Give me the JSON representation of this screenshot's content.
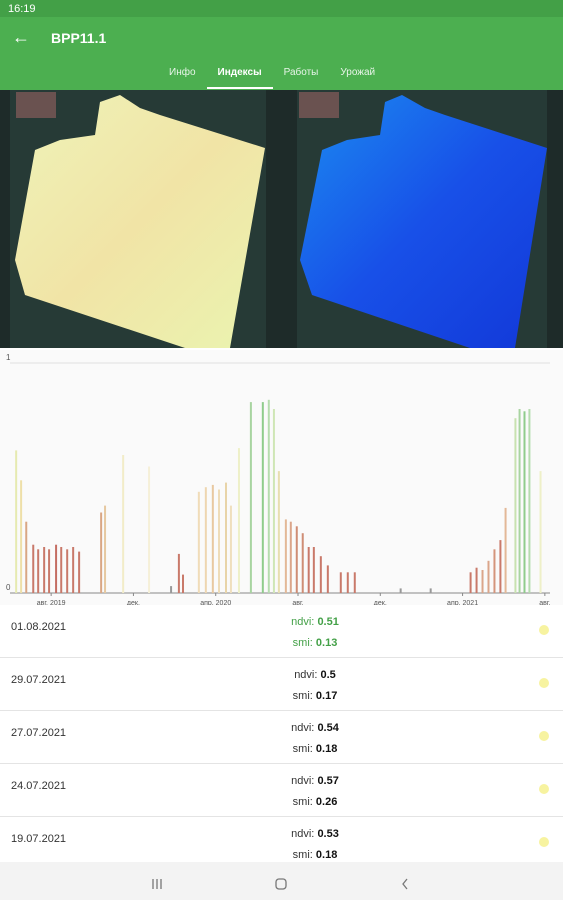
{
  "status_bar": {
    "time": "16:19"
  },
  "header": {
    "title": "ВРР11.1",
    "tabs": [
      "Инфо",
      "Индексы",
      "Работы",
      "Урожай"
    ]
  },
  "chart_data": {
    "type": "bar",
    "x": [
      -1.7,
      -1.46,
      -1.21,
      -0.87,
      -0.63,
      -0.34,
      -0.1,
      0.24,
      0.49,
      0.78,
      1.07,
      1.36,
      2.43,
      2.62,
      3.5,
      4.76,
      5.83,
      6.21,
      6.41,
      7.18,
      7.52,
      7.86,
      8.16,
      8.5,
      8.74,
      9.13,
      9.71,
      10.29,
      10.58,
      10.83,
      11.07,
      11.41,
      11.65,
      11.94,
      12.23,
      12.52,
      12.77,
      13.11,
      13.45,
      14.08,
      14.42,
      14.76,
      16.99,
      18.45,
      20.39,
      20.68,
      20.97,
      21.26,
      21.55,
      21.84,
      22.09,
      22.57,
      22.77,
      23.01,
      23.25,
      23.79
    ],
    "values": [
      0.62,
      0.49,
      0.31,
      0.21,
      0.19,
      0.2,
      0.19,
      0.21,
      0.2,
      0.19,
      0.2,
      0.18,
      0.35,
      0.38,
      0.6,
      0.55,
      0.03,
      0.17,
      0.08,
      0.44,
      0.46,
      0.47,
      0.45,
      0.48,
      0.38,
      0.63,
      0.83,
      0.83,
      0.84,
      0.8,
      0.53,
      0.32,
      0.31,
      0.29,
      0.26,
      0.2,
      0.2,
      0.16,
      0.12,
      0.09,
      0.09,
      0.09,
      0.02,
      0.02,
      0.09,
      0.11,
      0.1,
      0.14,
      0.19,
      0.23,
      0.37,
      0.76,
      0.8,
      0.79,
      0.8,
      0.53
    ],
    "colors": [
      "#e6eab0",
      "#eedfa8",
      "#d9a684",
      "#c9796a",
      "#c9796a",
      "#c9796a",
      "#c9796a",
      "#c46d62",
      "#c9796a",
      "#c9796a",
      "#c9796a",
      "#c9796a",
      "#d9a684",
      "#e6c8a0",
      "#f2ecc8",
      "#f5f0d8",
      "#999999",
      "#c9796a",
      "#c9796a",
      "#f0dcb8",
      "#eed6b0",
      "#e8c8a0",
      "#eedcb8",
      "#e8d4a8",
      "#efdfbd",
      "#eef0c8",
      "#a8d4a0",
      "#8fcc8c",
      "#b5dcae",
      "#cfe6b6",
      "#e8dfb0",
      "#e3b897",
      "#dba58a",
      "#cf8d75",
      "#cf8d75",
      "#c9796a",
      "#c9796a",
      "#c9796a",
      "#c9796a",
      "#c9796a",
      "#c9796a",
      "#c9796a",
      "#999999",
      "#999999",
      "#c9796a",
      "#c9796a",
      "#dba58a",
      "#dba58a",
      "#d4957c",
      "#c9796a",
      "#e3b897",
      "#c8e2b0",
      "#a8d4a0",
      "#8fcc8c",
      "#b5dcae",
      "#eef0c8"
    ],
    "xlim": [
      -2,
      24.25
    ],
    "xticks": [
      {
        "value": 0,
        "label": "авг. 2019"
      },
      {
        "value": 4,
        "label": "дек."
      },
      {
        "value": 8,
        "label": "апр. 2020"
      },
      {
        "value": 12,
        "label": "авг."
      },
      {
        "value": 16,
        "label": "дек."
      },
      {
        "value": 20,
        "label": "апр. 2021"
      },
      {
        "value": 24,
        "label": "авг."
      }
    ],
    "ylim": [
      0,
      1.02
    ],
    "yticks": [
      0,
      1
    ]
  },
  "list": {
    "rows": [
      {
        "date": "01.08.2021",
        "ndvi_label": "ndvi:",
        "ndvi": "0.51",
        "smi_label": "smi:",
        "smi": "0.13"
      },
      {
        "date": "29.07.2021",
        "ndvi_label": "ndvi:",
        "ndvi": "0.5",
        "smi_label": "smi:",
        "smi": "0.17"
      },
      {
        "date": "27.07.2021",
        "ndvi_label": "ndvi:",
        "ndvi": "0.54",
        "smi_label": "smi:",
        "smi": "0.18"
      },
      {
        "date": "24.07.2021",
        "ndvi_label": "ndvi:",
        "ndvi": "0.57",
        "smi_label": "smi:",
        "smi": "0.26"
      },
      {
        "date": "19.07.2021",
        "ndvi_label": "ndvi:",
        "ndvi": "0.53",
        "smi_label": "smi:",
        "smi": "0.18"
      }
    ]
  }
}
